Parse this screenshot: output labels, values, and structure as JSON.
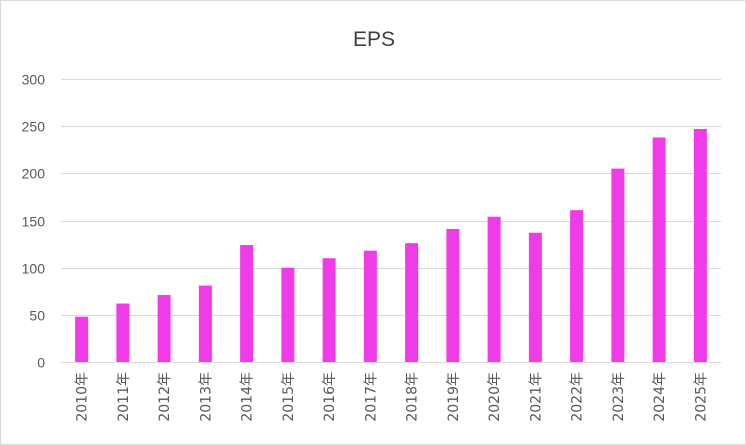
{
  "chart_data": {
    "type": "bar",
    "title": "EPS",
    "categories": [
      "2010年",
      "2011年",
      "2012年",
      "2013年",
      "2014年",
      "2015年",
      "2016年",
      "2017年",
      "2018年",
      "2019年",
      "2020年",
      "2021年",
      "2022年",
      "2023年",
      "2024年",
      "2025年"
    ],
    "series": [
      {
        "name": "EPS",
        "values": [
          48,
          62,
          71,
          81,
          124,
          100,
          110,
          118,
          126,
          141,
          154,
          137,
          161,
          205,
          238,
          247
        ],
        "color": "#f03ce8"
      }
    ],
    "yticks": [
      0,
      50,
      100,
      150,
      200,
      250,
      300
    ],
    "ylim": [
      0,
      300
    ],
    "xlabel": "",
    "ylabel": "",
    "grid": true,
    "legend": "none"
  },
  "colors": {
    "bar": "#f03ce8",
    "grid": "#d9d9d9",
    "text": "#595959",
    "title": "#404040"
  }
}
